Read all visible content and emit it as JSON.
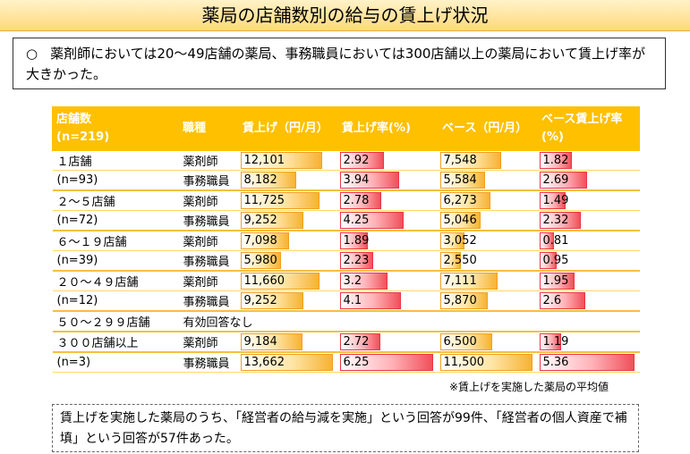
{
  "title": "薬局の店舗数別の給与の賃上げ状況",
  "summary": {
    "bullet": "○",
    "text": "薬剤師においては20～49店舗の薬局、事務職員においては300店舗以上の薬局において賃上げ率が大きかった。"
  },
  "table": {
    "headers": [
      "店舗数\n(n=219)",
      "職種",
      "賃上げ（円/月）",
      "賃上げ率(%)",
      "ベース（円/月）",
      "ベース賃上げ率(%)"
    ],
    "rows": [
      {
        "group": "１店舗",
        "role": "薬剤師",
        "raise": "12,101",
        "raise_rate": "2.92",
        "base": "7,548",
        "base_rate": "1.82"
      },
      {
        "group": "(n=93)",
        "role": "事務職員",
        "raise": "8,182",
        "raise_rate": "3.94",
        "base": "5,584",
        "base_rate": "2.69"
      },
      {
        "group": "２～５店舗",
        "role": "薬剤師",
        "raise": "11,725",
        "raise_rate": "2.78",
        "base": "6,273",
        "base_rate": "1.49"
      },
      {
        "group": "(n=72)",
        "role": "事務職員",
        "raise": "9,252",
        "raise_rate": "4.25",
        "base": "5,046",
        "base_rate": "2.32"
      },
      {
        "group": "６～１９店舗",
        "role": "薬剤師",
        "raise": "7,098",
        "raise_rate": "1.89",
        "base": "3,052",
        "base_rate": "0.81"
      },
      {
        "group": "(n=39)",
        "role": "事務職員",
        "raise": "5,980",
        "raise_rate": "2.23",
        "base": "2,550",
        "base_rate": "0.95"
      },
      {
        "group": "２０～４９店舗",
        "role": "薬剤師",
        "raise": "11,660",
        "raise_rate": "3.2",
        "base": "7,111",
        "base_rate": "1.95"
      },
      {
        "group": "(n=12)",
        "role": "事務職員",
        "raise": "9,252",
        "raise_rate": "4.1",
        "base": "5,870",
        "base_rate": "2.6"
      },
      {
        "group": "５０～２９９店舗",
        "role": "有効回答なし",
        "raise": "",
        "raise_rate": "",
        "base": "",
        "base_rate": ""
      },
      {
        "group": "３００店舗以上",
        "role": "薬剤師",
        "raise": "9,184",
        "raise_rate": "2.72",
        "base": "6,500",
        "base_rate": "1.19"
      },
      {
        "group": "(n=3)",
        "role": "事務職員",
        "raise": "13,662",
        "raise_rate": "6.25",
        "base": "11,500",
        "base_rate": "5.36"
      }
    ],
    "bar_max": {
      "raise": 13662,
      "raise_rate": 6.25,
      "base": 11500,
      "base_rate": 5.36
    },
    "colors": {
      "header": "#ffc000",
      "orange_bar": "#f7b233",
      "red_bar": "#f0505a"
    }
  },
  "note": "※賃上げを実施した薬局の平均値",
  "footer": "賃上げを実施した薬局のうち、「経営者の給与減を実施」という回答が99件、「経営者の個人資産で補填」という回答が57件あった。"
}
